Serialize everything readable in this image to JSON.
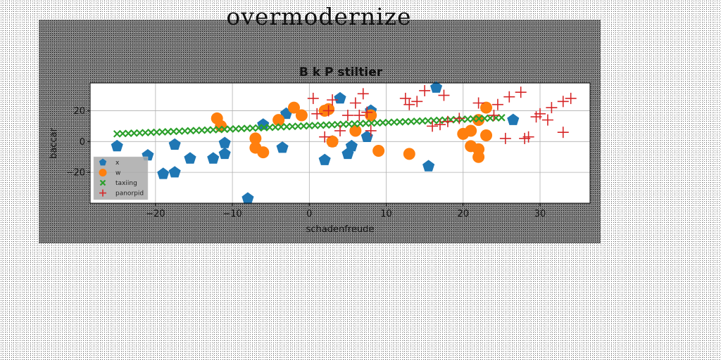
{
  "figure_title": "overmodernize",
  "chart_data": {
    "type": "scatter",
    "title": "B k P stiltier",
    "xlabel": "schadenfreude",
    "ylabel": "baccar",
    "xlim": [
      -28.5,
      36.5
    ],
    "ylim": [
      -40,
      38
    ],
    "xticks": [
      -20,
      -10,
      0,
      10,
      20,
      30
    ],
    "yticks": [
      -20,
      0,
      20
    ],
    "grid": true,
    "legend_position": "lower-left",
    "series": [
      {
        "name": "x",
        "marker": "pentagon",
        "color": "#1f77b4",
        "points": [
          [
            -25,
            -3
          ],
          [
            -21,
            -9
          ],
          [
            -19,
            -21
          ],
          [
            -17.5,
            -20
          ],
          [
            -17.5,
            -2
          ],
          [
            -15.5,
            -11
          ],
          [
            -12.5,
            -11
          ],
          [
            -11,
            -8
          ],
          [
            -11,
            -1
          ],
          [
            -8,
            -37
          ],
          [
            -6,
            11
          ],
          [
            -3.5,
            -4
          ],
          [
            -3,
            18
          ],
          [
            4,
            28
          ],
          [
            2,
            -12
          ],
          [
            3,
            0
          ],
          [
            5,
            -8
          ],
          [
            5.5,
            -3
          ],
          [
            7.5,
            3
          ],
          [
            8,
            20
          ],
          [
            15.5,
            -16
          ],
          [
            16.5,
            35
          ],
          [
            26.5,
            14
          ]
        ]
      },
      {
        "name": "w",
        "marker": "circle",
        "color": "#ff7f0e",
        "points": [
          [
            -12,
            15
          ],
          [
            -11.5,
            10
          ],
          [
            -7,
            2
          ],
          [
            -7,
            -4
          ],
          [
            -6,
            -7
          ],
          [
            -4,
            14
          ],
          [
            -2,
            22
          ],
          [
            -1,
            17
          ],
          [
            2,
            20
          ],
          [
            2.5,
            21
          ],
          [
            3,
            0
          ],
          [
            6,
            7
          ],
          [
            8,
            17
          ],
          [
            9,
            -6
          ],
          [
            13,
            -8
          ],
          [
            20,
            5
          ],
          [
            21,
            -3
          ],
          [
            21,
            7
          ],
          [
            22,
            -10
          ],
          [
            22,
            -5
          ],
          [
            22,
            14
          ],
          [
            23,
            22
          ],
          [
            23,
            4
          ]
        ]
      },
      {
        "name": "taxiing",
        "marker": "x",
        "color": "#2ca02c",
        "trend": {
          "x_start": -25,
          "x_end": 25,
          "y_start": 5,
          "y_end": 15.5,
          "count": 69
        }
      },
      {
        "name": "panorpid",
        "marker": "plus",
        "color": "#d62728",
        "points": [
          [
            0.5,
            28
          ],
          [
            1,
            18
          ],
          [
            2,
            3
          ],
          [
            2.5,
            20
          ],
          [
            3,
            27
          ],
          [
            4,
            7
          ],
          [
            5,
            17
          ],
          [
            6,
            25
          ],
          [
            6.5,
            17
          ],
          [
            7,
            31
          ],
          [
            7.5,
            19
          ],
          [
            8,
            7
          ],
          [
            12.5,
            28
          ],
          [
            13,
            24
          ],
          [
            14,
            26
          ],
          [
            15,
            33
          ],
          [
            16,
            10
          ],
          [
            17,
            11
          ],
          [
            17.5,
            30
          ],
          [
            18,
            13
          ],
          [
            19.5,
            15
          ],
          [
            22,
            25
          ],
          [
            24,
            17
          ],
          [
            24.5,
            24
          ],
          [
            25.5,
            2
          ],
          [
            26,
            29
          ],
          [
            27.5,
            32
          ],
          [
            28,
            2
          ],
          [
            28.5,
            3
          ],
          [
            29.5,
            16
          ],
          [
            30,
            18
          ],
          [
            31,
            14
          ],
          [
            31.5,
            22
          ],
          [
            33,
            6
          ],
          [
            33,
            26
          ],
          [
            34,
            28
          ]
        ]
      }
    ]
  }
}
